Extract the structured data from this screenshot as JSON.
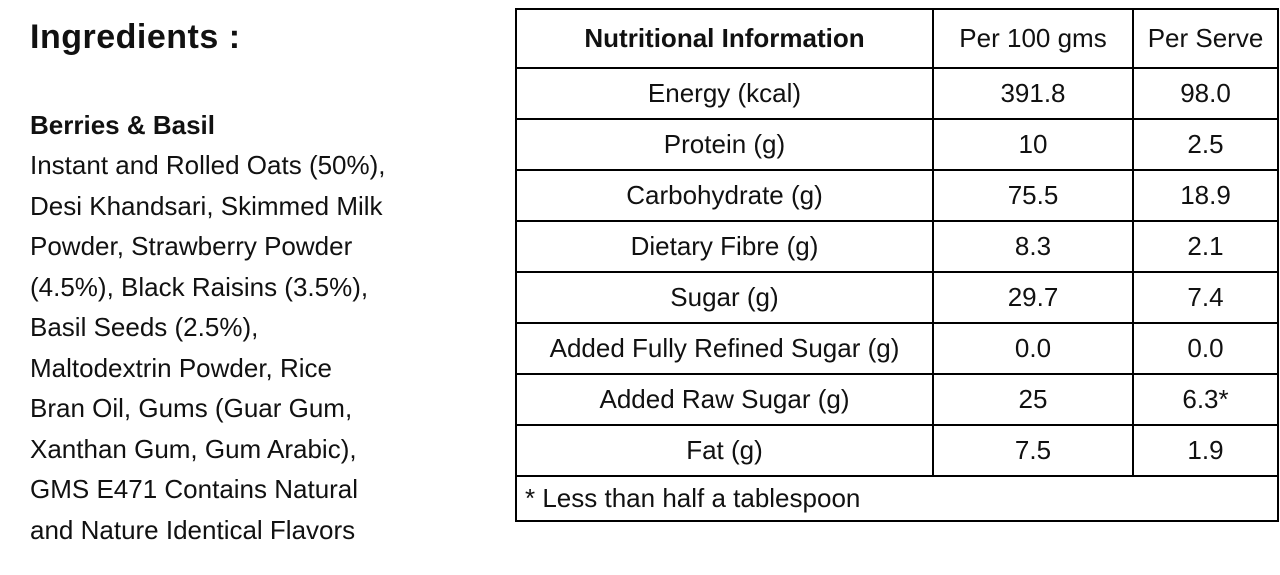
{
  "ingredients": {
    "title": "Ingredients :",
    "product_name": "Berries & Basil",
    "text": "Instant and Rolled Oats (50%),\nDesi Khandsari, Skimmed Milk\nPowder, Strawberry Powder\n(4.5%), Black Raisins (3.5%),\nBasil Seeds (2.5%),\nMaltodextrin Powder, Rice\nBran Oil, Gums (Guar Gum,\nXanthan Gum, Gum Arabic),\nGMS E471 Contains Natural\nand Nature Identical Flavors"
  },
  "nutrition_table": {
    "headers": {
      "info": "Nutritional Information",
      "per_100": "Per 100 gms",
      "per_serve": "Per Serve"
    },
    "rows": [
      {
        "label": "Energy (kcal)",
        "per_100": "391.8",
        "per_serve": "98.0"
      },
      {
        "label": "Protein (g)",
        "per_100": "10",
        "per_serve": "2.5"
      },
      {
        "label": "Carbohydrate (g)",
        "per_100": "75.5",
        "per_serve": "18.9"
      },
      {
        "label": "Dietary Fibre (g)",
        "per_100": "8.3",
        "per_serve": "2.1"
      },
      {
        "label": "Sugar (g)",
        "per_100": "29.7",
        "per_serve": "7.4"
      },
      {
        "label": "Added Fully Refined Sugar (g)",
        "per_100": "0.0",
        "per_serve": "0.0"
      },
      {
        "label": "Added Raw Sugar (g)",
        "per_100": "25",
        "per_serve": "6.3*"
      },
      {
        "label": "Fat (g)",
        "per_100": "7.5",
        "per_serve": "1.9"
      }
    ],
    "footnote": "* Less than half a tablespoon"
  },
  "colors": {
    "text": "#111111",
    "border": "#000000",
    "background": "#ffffff"
  }
}
